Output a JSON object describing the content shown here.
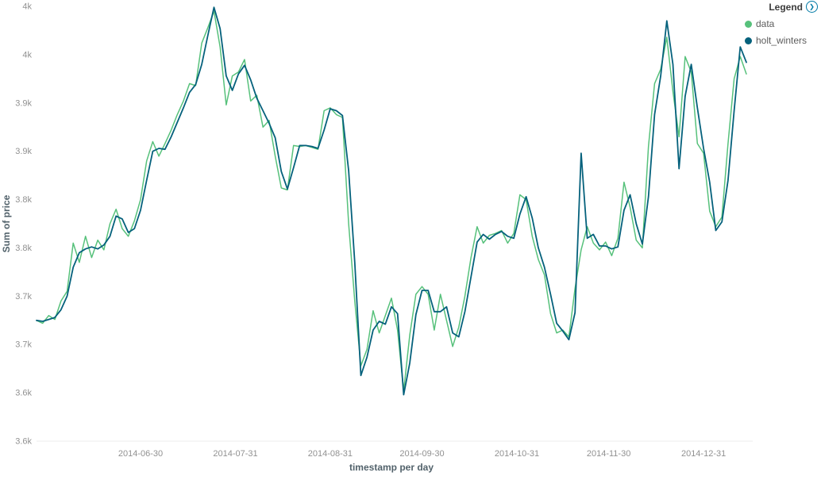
{
  "legend": {
    "title": "Legend",
    "toggle_icon": "❯",
    "items": [
      {
        "label": "data",
        "color": "#57c17b"
      },
      {
        "label": "holt_winters",
        "color": "#05617c"
      }
    ]
  },
  "chart_data": {
    "type": "line",
    "title": "",
    "xlabel": "timestamp per day",
    "ylabel": "Sum of price",
    "ylim": [
      3550,
      4000
    ],
    "grid": false,
    "legend_position": "top-right",
    "x": {
      "start_date": "2014-05-27",
      "end_date": "2015-01-14",
      "step_days": 2
    },
    "x_tick_labels": [
      "2014-06-30",
      "2014-07-31",
      "2014-08-31",
      "2014-09-30",
      "2014-10-31",
      "2014-11-30",
      "2014-12-31"
    ],
    "y_ticks": [
      4000,
      3950,
      3900,
      3850,
      3800,
      3750,
      3700,
      3650,
      3600,
      3550
    ],
    "y_tick_labels": [
      "4k",
      "4k",
      "3.9k",
      "3.9k",
      "3.8k",
      "3.8k",
      "3.7k",
      "3.7k",
      "3.6k",
      "3.6k"
    ],
    "series": [
      {
        "name": "data",
        "color": "#57c17b",
        "values": [
          3675,
          3672,
          3680,
          3676,
          3695,
          3705,
          3755,
          3735,
          3762,
          3740,
          3758,
          3748,
          3775,
          3790,
          3770,
          3762,
          3778,
          3800,
          3840,
          3860,
          3845,
          3858,
          3872,
          3888,
          3902,
          3920,
          3918,
          3962,
          3978,
          3995,
          3958,
          3898,
          3928,
          3932,
          3945,
          3902,
          3908,
          3875,
          3882,
          3845,
          3812,
          3810,
          3856,
          3855,
          3856,
          3854,
          3852,
          3892,
          3895,
          3888,
          3885,
          3775,
          3695,
          3628,
          3645,
          3685,
          3662,
          3680,
          3698,
          3665,
          3602,
          3660,
          3702,
          3710,
          3702,
          3665,
          3702,
          3675,
          3648,
          3668,
          3700,
          3740,
          3772,
          3755,
          3763,
          3765,
          3768,
          3755,
          3765,
          3805,
          3800,
          3762,
          3738,
          3722,
          3682,
          3662,
          3665,
          3658,
          3708,
          3748,
          3772,
          3755,
          3748,
          3756,
          3742,
          3760,
          3818,
          3792,
          3758,
          3750,
          3855,
          3920,
          3935,
          3968,
          3912,
          3865,
          3948,
          3932,
          3858,
          3848,
          3788,
          3772,
          3782,
          3858,
          3925,
          3948,
          3930
        ]
      },
      {
        "name": "holt_winters",
        "color": "#05617c",
        "values": [
          3675,
          3674,
          3676,
          3678,
          3686,
          3700,
          3730,
          3745,
          3749,
          3751,
          3749,
          3753,
          3762,
          3783,
          3780,
          3766,
          3770,
          3789,
          3820,
          3850,
          3853,
          3852,
          3865,
          3880,
          3895,
          3911,
          3919,
          3940,
          3970,
          3999,
          3977,
          3928,
          3913,
          3930,
          3939,
          3924,
          3905,
          3892,
          3879,
          3864,
          3829,
          3811,
          3833,
          3856,
          3856,
          3855,
          3853,
          3872,
          3894,
          3892,
          3887,
          3830,
          3735,
          3618,
          3637,
          3665,
          3674,
          3671,
          3689,
          3682,
          3598,
          3631,
          3681,
          3706,
          3706,
          3684,
          3684,
          3689,
          3662,
          3658,
          3684,
          3720,
          3756,
          3764,
          3759,
          3764,
          3767,
          3762,
          3760,
          3785,
          3803,
          3781,
          3750,
          3730,
          3702,
          3672,
          3664,
          3655,
          3683,
          3848,
          3760,
          3764,
          3752,
          3752,
          3749,
          3751,
          3789,
          3805,
          3775,
          3754,
          3803,
          3888,
          3928,
          3985,
          3940,
          3832,
          3907,
          3940,
          3895,
          3853,
          3818,
          3768,
          3777,
          3820,
          3892,
          3958,
          3942
        ]
      }
    ]
  }
}
